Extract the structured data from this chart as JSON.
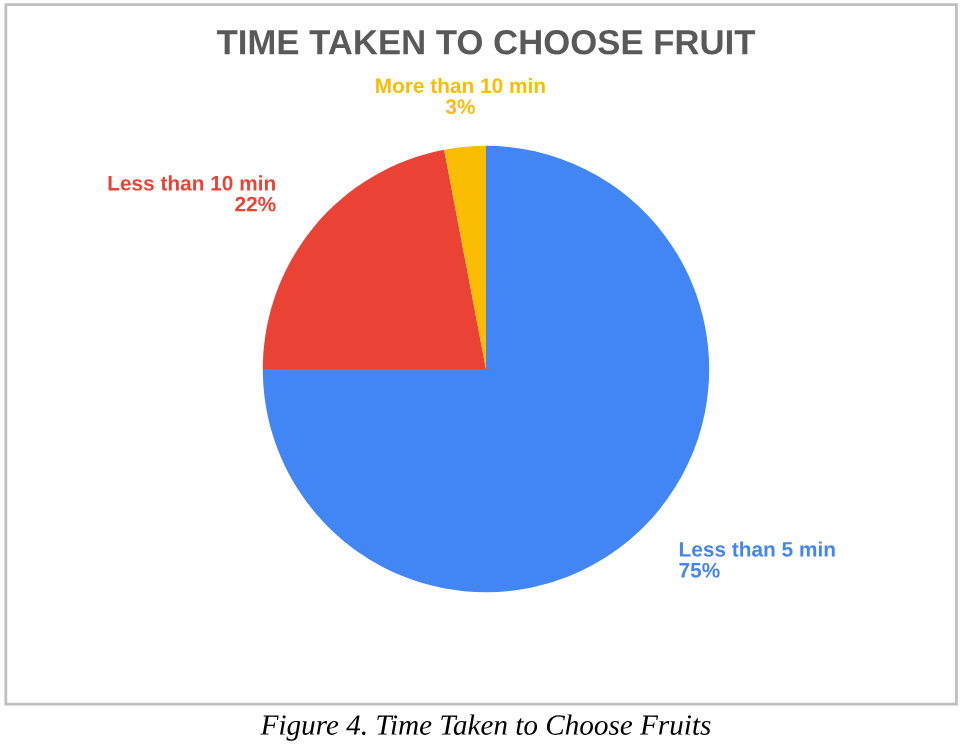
{
  "chart_data": {
    "type": "pie",
    "title": "TIME TAKEN TO CHOOSE FRUIT",
    "categories": [
      "Less than 5 min",
      "Less than 10 min",
      "More than 10 min"
    ],
    "values": [
      75,
      22,
      3
    ],
    "value_labels": [
      "75%",
      "22%",
      "3%"
    ],
    "colors": [
      "#4285f4",
      "#ea4335",
      "#fbbc04"
    ],
    "legend": false,
    "annotations": [
      "Figure 4. Time Taken to Choose Fruits"
    ]
  }
}
